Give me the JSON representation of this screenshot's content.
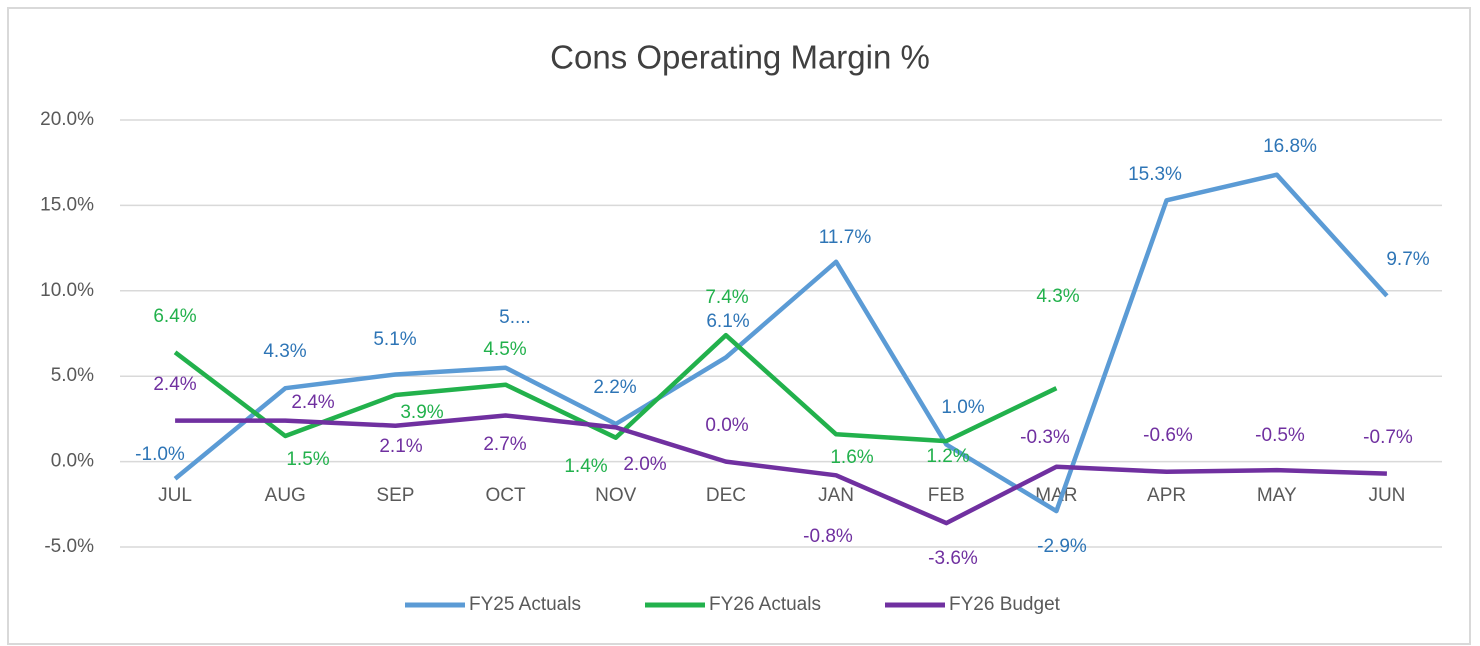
{
  "chart_data": {
    "type": "line",
    "title": "Cons Operating Margin %",
    "categories": [
      "JUL",
      "AUG",
      "SEP",
      "OCT",
      "NOV",
      "DEC",
      "JAN",
      "FEB",
      "MAR",
      "APR",
      "MAY",
      "JUN"
    ],
    "series": [
      {
        "name": "FY25 Actuals",
        "color": "#5b9bd5",
        "values": [
          -1.0,
          4.3,
          5.1,
          5.5,
          2.2,
          6.1,
          11.7,
          1.0,
          -2.9,
          15.3,
          16.8,
          9.7
        ],
        "value_labels": [
          "-1.0%",
          "4.3%",
          "5.1%",
          "5....",
          "2.2%",
          "6.1%",
          "11.7%",
          "1.0%",
          "-2.9%",
          "15.3%",
          "16.8%",
          "9.7%"
        ]
      },
      {
        "name": "FY26 Actuals",
        "color": "#22b14c",
        "values": [
          6.4,
          1.5,
          3.9,
          4.5,
          1.4,
          7.4,
          1.6,
          1.2,
          4.3,
          null,
          null,
          null
        ],
        "value_labels": [
          "6.4%",
          "1.5%",
          "3.9%",
          "4.5%",
          "1.4%",
          "7.4%",
          "1.6%",
          "1.2%",
          "4.3%",
          null,
          null,
          null
        ]
      },
      {
        "name": "FY26 Budget",
        "color": "#7030a0",
        "values": [
          2.4,
          2.4,
          2.1,
          2.7,
          2.0,
          0.0,
          -0.8,
          -3.6,
          -0.3,
          -0.6,
          -0.5,
          -0.7
        ],
        "value_labels": [
          "2.4%",
          "2.4%",
          "2.1%",
          "2.7%",
          "2.0%",
          "0.0%",
          "-0.8%",
          "-3.6%",
          "-0.3%",
          "-0.6%",
          "-0.5%",
          "-0.7%"
        ]
      }
    ],
    "ylim": [
      -5,
      20
    ],
    "yticks": [
      {
        "value": -5,
        "label": "-5.0%"
      },
      {
        "value": 0,
        "label": "0.0%"
      },
      {
        "value": 5,
        "label": "5.0%"
      },
      {
        "value": 10,
        "label": "10.0%"
      },
      {
        "value": 15,
        "label": "15.0%"
      },
      {
        "value": 20,
        "label": "20.0%"
      }
    ],
    "grid": true,
    "legend": "bottom"
  }
}
